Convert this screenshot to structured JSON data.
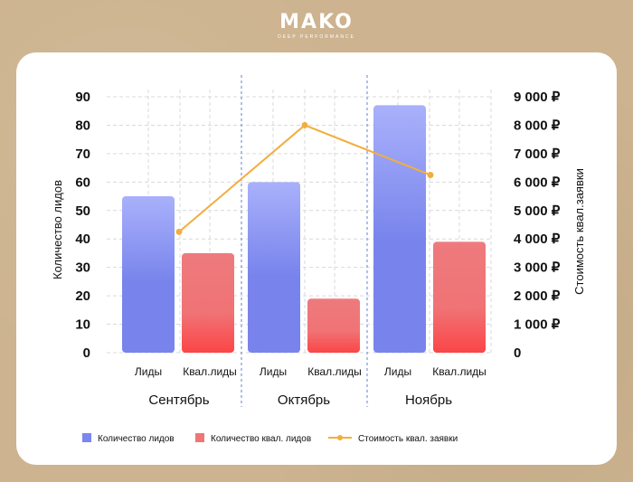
{
  "logo": {
    "brand": "MAKO",
    "tagline": "DEEP PERFORMANCE"
  },
  "chart_data": {
    "type": "bar",
    "groups": [
      "Сентябрь",
      "Октябрь",
      "Ноябрь"
    ],
    "bar_categories": [
      "Лиды",
      "Квал.лиды"
    ],
    "series": [
      {
        "name": "Количество лидов",
        "values": [
          55,
          60,
          87
        ],
        "color": "#7b86ee"
      },
      {
        "name": "Количество квал. лидов",
        "values": [
          35,
          19,
          39
        ],
        "color": "#f07575"
      },
      {
        "name": "Стоимость квал. заявки",
        "values": [
          4250,
          8000,
          6250
        ],
        "color": "#f2ae3e",
        "type": "line"
      }
    ],
    "ylabel": "Количество лидов",
    "y2label": "Стоимость квал.заявки",
    "ylim": [
      0,
      90
    ],
    "y2lim": [
      0,
      9000
    ],
    "yticks": [
      "0",
      "10",
      "20",
      "30",
      "40",
      "50",
      "60",
      "70",
      "80",
      "90"
    ],
    "y2ticks": [
      "0",
      "1 000 ₽",
      "2 000 ₽",
      "3 000 ₽",
      "4 000 ₽",
      "5 000 ₽",
      "6 000 ₽",
      "7 000 ₽",
      "8 000 ₽",
      "9 000 ₽"
    ],
    "grid": true,
    "legend_position": "bottom"
  }
}
